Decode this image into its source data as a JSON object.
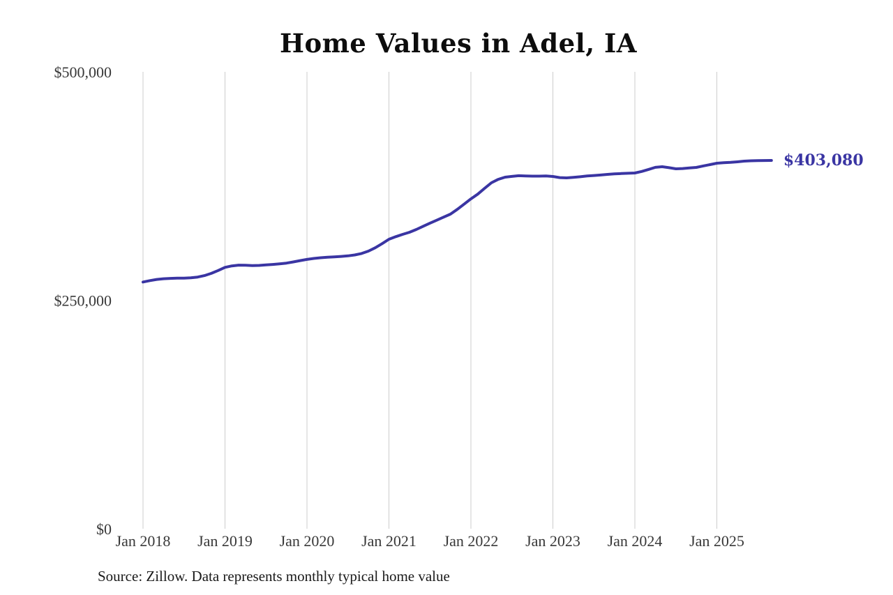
{
  "title": "Home Values in Adel, IA",
  "end_label": "$403,080",
  "source_note": "Source: Zillow. Data represents monthly typical home value",
  "colors": {
    "line": "#3a35a3",
    "grid": "#cccccc",
    "axis_text": "#383838",
    "title_text": "#0d0d0d"
  },
  "chart_data": {
    "type": "line",
    "title": "Home Values in Adel, IA",
    "series_name": "Monthly typical home value (ZHVI)",
    "xlabel": "",
    "ylabel": "",
    "ylim": [
      0,
      500000
    ],
    "grid": "vertical-only",
    "legend": "none",
    "x_tick_labels": [
      "Jan 2018",
      "Jan 2019",
      "Jan 2020",
      "Jan 2021",
      "Jan 2022",
      "Jan 2023",
      "Jan 2024",
      "Jan 2025"
    ],
    "y_ticks": [
      {
        "label": "$0",
        "value": 0
      },
      {
        "label": "$250,000",
        "value": 250000
      },
      {
        "label": "$500,000",
        "value": 500000
      }
    ],
    "final_value": 403080,
    "final_value_label": "$403,080",
    "months": [
      "2018-01",
      "2018-02",
      "2018-03",
      "2018-04",
      "2018-05",
      "2018-06",
      "2018-07",
      "2018-08",
      "2018-09",
      "2018-10",
      "2018-11",
      "2018-12",
      "2019-01",
      "2019-02",
      "2019-03",
      "2019-04",
      "2019-05",
      "2019-06",
      "2019-07",
      "2019-08",
      "2019-09",
      "2019-10",
      "2019-11",
      "2019-12",
      "2020-01",
      "2020-02",
      "2020-03",
      "2020-04",
      "2020-05",
      "2020-06",
      "2020-07",
      "2020-08",
      "2020-09",
      "2020-10",
      "2020-11",
      "2020-12",
      "2021-01",
      "2021-02",
      "2021-03",
      "2021-04",
      "2021-05",
      "2021-06",
      "2021-07",
      "2021-08",
      "2021-09",
      "2021-10",
      "2021-11",
      "2021-12",
      "2022-01",
      "2022-02",
      "2022-03",
      "2022-04",
      "2022-05",
      "2022-06",
      "2022-07",
      "2022-08",
      "2022-09",
      "2022-10",
      "2022-11",
      "2022-12",
      "2023-01",
      "2023-02",
      "2023-03",
      "2023-04",
      "2023-05",
      "2023-06",
      "2023-07",
      "2023-08",
      "2023-09",
      "2023-10",
      "2023-11",
      "2023-12",
      "2024-01",
      "2024-02",
      "2024-03",
      "2024-04",
      "2024-05",
      "2024-06",
      "2024-07",
      "2024-08",
      "2024-09",
      "2024-10",
      "2024-11",
      "2024-12",
      "2025-01",
      "2025-02",
      "2025-03",
      "2025-04",
      "2025-05",
      "2025-06",
      "2025-07",
      "2025-08",
      "2025-09"
    ],
    "values": [
      270000,
      271500,
      272800,
      273600,
      274000,
      274200,
      274300,
      274600,
      275400,
      277000,
      279500,
      282600,
      286000,
      287600,
      288500,
      288300,
      288000,
      288200,
      288700,
      289200,
      289900,
      290700,
      292000,
      293400,
      294700,
      295800,
      296600,
      297100,
      297500,
      298000,
      298600,
      299600,
      301200,
      303800,
      307500,
      312000,
      316800,
      319600,
      322100,
      324400,
      327500,
      331000,
      334400,
      337600,
      341000,
      344300,
      349500,
      355200,
      361000,
      366200,
      372500,
      378600,
      382400,
      384700,
      385600,
      386300,
      386100,
      385900,
      385900,
      386000,
      385500,
      384300,
      384000,
      384500,
      385200,
      386000,
      386600,
      387100,
      387800,
      388300,
      388700,
      389000,
      389300,
      391000,
      393200,
      395500,
      396200,
      395100,
      393900,
      394200,
      394800,
      395400,
      397000,
      398500,
      400000,
      400500,
      400900,
      401500,
      402300,
      402700,
      402900,
      403000,
      403080
    ]
  }
}
